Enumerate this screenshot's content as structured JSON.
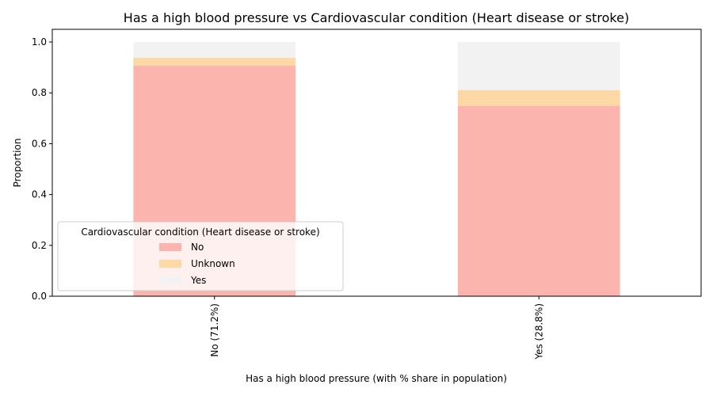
{
  "chart_data": {
    "type": "bar",
    "stacked": true,
    "title": "Has a high blood pressure vs Cardiovascular condition (Heart disease or stroke)",
    "xlabel": "Has a high blood pressure (with % share in population)",
    "ylabel": "Proportion",
    "categories": [
      "No (71.2%)",
      "Yes (28.8%)"
    ],
    "ylim": [
      0,
      1.05
    ],
    "yticks": [
      "0.0",
      "0.2",
      "0.4",
      "0.6",
      "0.8",
      "1.0"
    ],
    "ytick_values": [
      0,
      0.2,
      0.4,
      0.6,
      0.8,
      1.0
    ],
    "series": [
      {
        "name": "No",
        "values": [
          0.907,
          0.749
        ],
        "color": "#fbb4ae"
      },
      {
        "name": "Unknown",
        "values": [
          0.031,
          0.062
        ],
        "color": "#fed9a6"
      },
      {
        "name": "Yes",
        "values": [
          0.062,
          0.189
        ],
        "color": "#f2f2f2"
      }
    ],
    "legend": {
      "title": "Cardiovascular condition (Heart disease or stroke)",
      "placement": "lower-left"
    },
    "grid": false
  }
}
